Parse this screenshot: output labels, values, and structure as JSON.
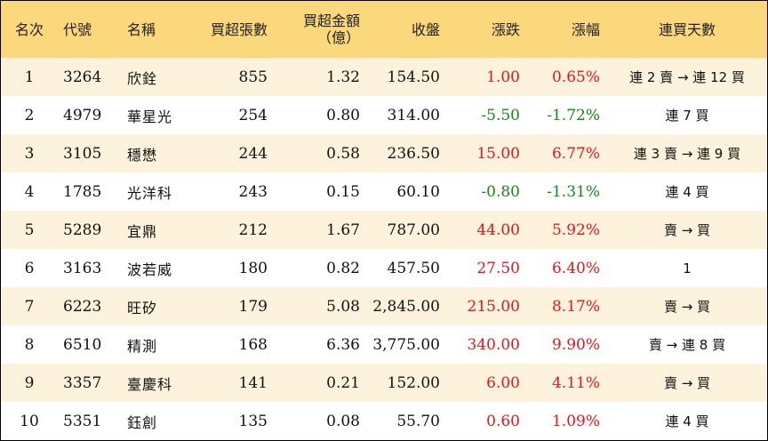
{
  "headers": {
    "rank": "名次",
    "code": "代號",
    "name": "名稱",
    "volume": "買超張數",
    "amount_line1": "買超金額",
    "amount_line2": "（億）",
    "close": "收盤",
    "change": "漲跌",
    "pct": "漲幅",
    "streak": "連買天數"
  },
  "colors": {
    "header_bg": "#fcd87c",
    "stripe_bg": "#fdf3dc",
    "up": "#e8141b",
    "down": "#15861d"
  },
  "rows": [
    {
      "rank": "1",
      "code": "3264",
      "name": "欣銓",
      "volume": "855",
      "amount": "1.32",
      "close": "154.50",
      "change": "1.00",
      "pct": "0.65%",
      "dir": "up",
      "streak": "連 2 賣 → 連 12 買"
    },
    {
      "rank": "2",
      "code": "4979",
      "name": "華星光",
      "volume": "254",
      "amount": "0.80",
      "close": "314.00",
      "change": "-5.50",
      "pct": "-1.72%",
      "dir": "down",
      "streak": "連 7 買"
    },
    {
      "rank": "3",
      "code": "3105",
      "name": "穩懋",
      "volume": "244",
      "amount": "0.58",
      "close": "236.50",
      "change": "15.00",
      "pct": "6.77%",
      "dir": "up",
      "streak": "連 3 賣 → 連 9 買"
    },
    {
      "rank": "4",
      "code": "1785",
      "name": "光洋科",
      "volume": "243",
      "amount": "0.15",
      "close": "60.10",
      "change": "-0.80",
      "pct": "-1.31%",
      "dir": "down",
      "streak": "連 4 買"
    },
    {
      "rank": "5",
      "code": "5289",
      "name": "宜鼎",
      "volume": "212",
      "amount": "1.67",
      "close": "787.00",
      "change": "44.00",
      "pct": "5.92%",
      "dir": "up",
      "streak": "賣 → 買"
    },
    {
      "rank": "6",
      "code": "3163",
      "name": "波若威",
      "volume": "180",
      "amount": "0.82",
      "close": "457.50",
      "change": "27.50",
      "pct": "6.40%",
      "dir": "up",
      "streak": "1"
    },
    {
      "rank": "7",
      "code": "6223",
      "name": "旺矽",
      "volume": "179",
      "amount": "5.08",
      "close": "2,845.00",
      "change": "215.00",
      "pct": "8.17%",
      "dir": "up",
      "streak": "賣 → 買"
    },
    {
      "rank": "8",
      "code": "6510",
      "name": "精測",
      "volume": "168",
      "amount": "6.36",
      "close": "3,775.00",
      "change": "340.00",
      "pct": "9.90%",
      "dir": "up",
      "streak": "賣 → 連 8 買"
    },
    {
      "rank": "9",
      "code": "3357",
      "name": "臺慶科",
      "volume": "141",
      "amount": "0.21",
      "close": "152.00",
      "change": "6.00",
      "pct": "4.11%",
      "dir": "up",
      "streak": "賣 → 買"
    },
    {
      "rank": "10",
      "code": "5351",
      "name": "鈺創",
      "volume": "135",
      "amount": "0.08",
      "close": "55.70",
      "change": "0.60",
      "pct": "1.09%",
      "dir": "up",
      "streak": "連 4 買"
    }
  ]
}
